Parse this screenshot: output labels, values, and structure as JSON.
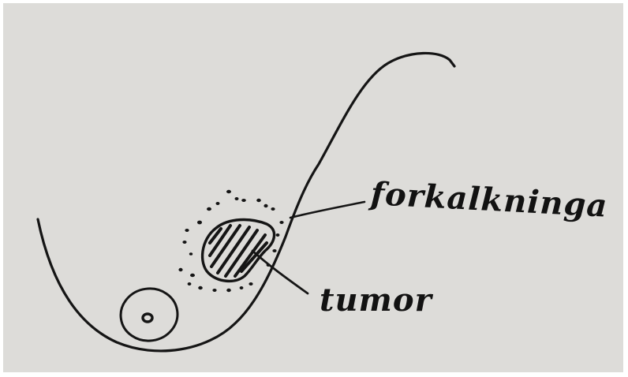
{
  "labels": {
    "calcification": "forkalkninga",
    "tumor": "tumor"
  },
  "colors": {
    "paper": "#dddcd9",
    "ink": "#151515",
    "border": "#ffffff"
  }
}
